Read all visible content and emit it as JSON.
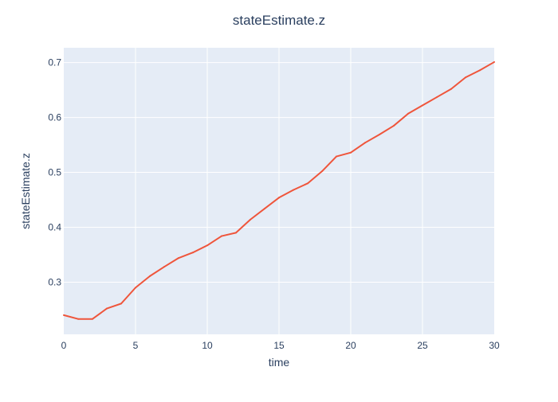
{
  "chart_data": {
    "type": "line",
    "title": "stateEstimate.z",
    "xlabel": "time",
    "ylabel": "stateEstimate.z",
    "xlim": [
      0,
      30
    ],
    "ylim": [
      0.205,
      0.727
    ],
    "x_ticks": [
      0,
      5,
      10,
      15,
      20,
      25,
      30
    ],
    "y_ticks": [
      0.3,
      0.4,
      0.5,
      0.6,
      0.7
    ],
    "grid": true,
    "legend": "none",
    "colors": {
      "plot_background": "#e5ecf6",
      "grid": "#ffffff",
      "line": "#ef553b",
      "text": "#2a3f5f"
    },
    "series": [
      {
        "x": [
          0,
          1,
          2,
          3,
          4,
          5,
          6,
          7,
          8,
          9,
          10,
          11,
          12,
          13,
          14,
          15,
          16,
          17,
          18,
          19,
          20,
          21,
          22,
          23,
          24,
          25,
          26,
          27,
          28,
          29,
          30
        ],
        "values": [
          0.24,
          0.233,
          0.233,
          0.252,
          0.261,
          0.29,
          0.311,
          0.328,
          0.344,
          0.354,
          0.367,
          0.384,
          0.39,
          0.414,
          0.434,
          0.454,
          0.468,
          0.48,
          0.502,
          0.529,
          0.536,
          0.554,
          0.569,
          0.585,
          0.607,
          0.622,
          0.637,
          0.652,
          0.673,
          0.686,
          0.701
        ]
      }
    ]
  }
}
